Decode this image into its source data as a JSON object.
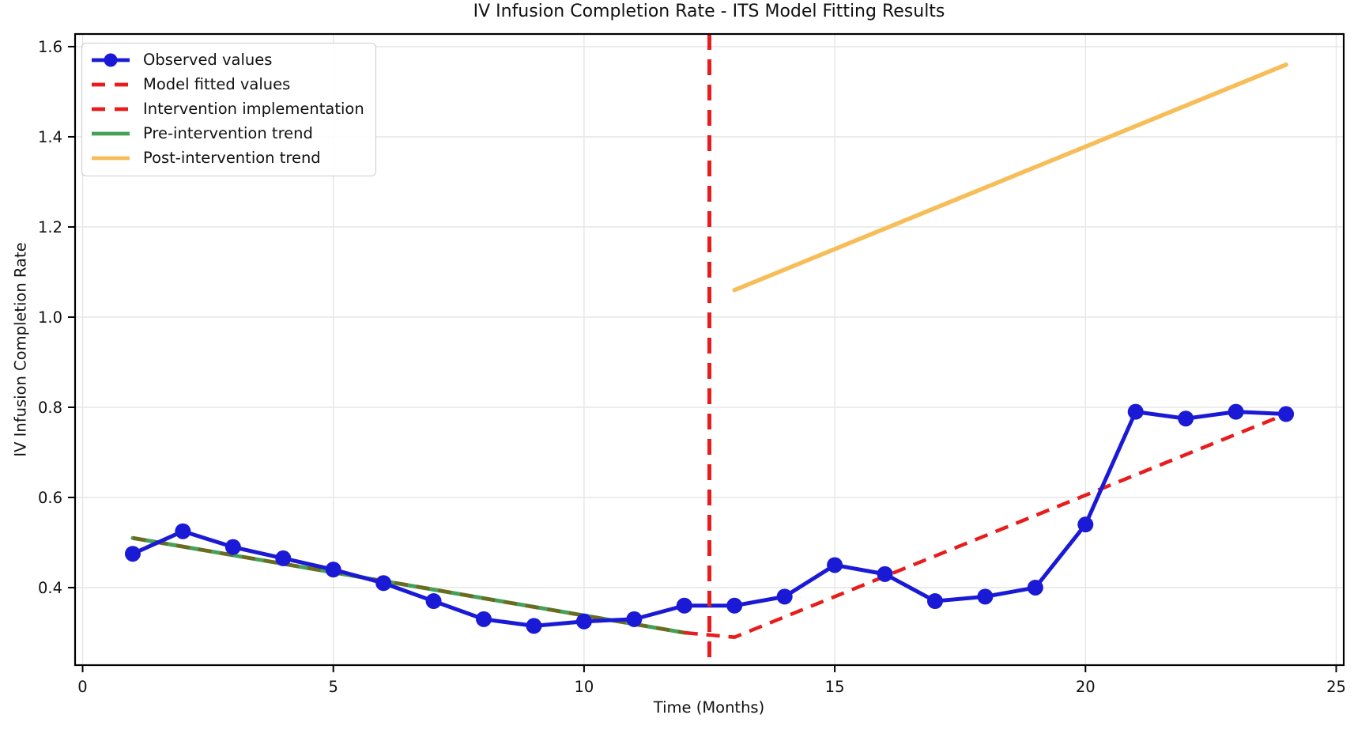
{
  "chart_data": {
    "type": "line",
    "title": "IV Infusion Completion Rate - ITS Model Fitting Results",
    "xlabel": "Time (Months)",
    "ylabel": "IV Infusion Completion Rate",
    "xlim": [
      -0.15,
      25.15
    ],
    "ylim": [
      0.228,
      1.628
    ],
    "xtick_values": [
      0,
      5,
      10,
      15,
      20,
      25
    ],
    "xtick_labels": [
      "0",
      "5",
      "10",
      "15",
      "20",
      "25"
    ],
    "ytick_values": [
      0.4,
      0.6,
      0.8,
      1.0,
      1.2,
      1.4,
      1.6
    ],
    "ytick_labels": [
      "0.4",
      "0.6",
      "0.8",
      "1.0",
      "1.2",
      "1.4",
      "1.6"
    ],
    "grid": true,
    "legend_position": "upper-left",
    "legend": [
      {
        "label": "Observed values",
        "type": "marker-line",
        "color": "#1a1ad6"
      },
      {
        "label": "Model fitted values",
        "type": "dashed",
        "color": "#e81c1c"
      },
      {
        "label": "Intervention implementation",
        "type": "dashed",
        "color": "#e81c1c"
      },
      {
        "label": "Pre-intervention trend",
        "type": "solid",
        "color": "#46a05a"
      },
      {
        "label": "Post-intervention trend",
        "type": "solid",
        "color": "#f6bd59"
      }
    ],
    "intervention_x": 12.5,
    "series": [
      {
        "name": "Pre-intervention trend",
        "x": [
          1,
          12
        ],
        "y": [
          0.51,
          0.3
        ],
        "color": "#46a05a",
        "dash": null,
        "width": 5,
        "marker": false
      },
      {
        "name": "Post-intervention trend",
        "x": [
          13,
          24
        ],
        "y": [
          1.06,
          1.56
        ],
        "color": "#f6bd59",
        "dash": null,
        "width": 5.5,
        "marker": false
      },
      {
        "name": "Model fitted values",
        "x": [
          1,
          2,
          3,
          4,
          5,
          6,
          7,
          8,
          9,
          10,
          11,
          12,
          13,
          14,
          15,
          16,
          17,
          18,
          19,
          20,
          21,
          22,
          23,
          24
        ],
        "y": [
          0.51,
          0.491,
          0.472,
          0.453,
          0.434,
          0.415,
          0.396,
          0.376,
          0.357,
          0.338,
          0.319,
          0.3,
          0.29,
          0.335,
          0.38,
          0.425,
          0.47,
          0.515,
          0.56,
          0.605,
          0.65,
          0.695,
          0.74,
          0.785
        ],
        "color": "#e81c1c",
        "dash": "17 11",
        "width": 4.5,
        "marker": false,
        "split_at_x": 12,
        "pre_overlap_color": "#6e6a1e"
      },
      {
        "name": "Observed values",
        "x": [
          1,
          2,
          3,
          4,
          5,
          6,
          7,
          8,
          9,
          10,
          11,
          12,
          13,
          14,
          15,
          16,
          17,
          18,
          19,
          20,
          21,
          22,
          23,
          24
        ],
        "y": [
          0.475,
          0.525,
          0.49,
          0.465,
          0.44,
          0.41,
          0.37,
          0.33,
          0.315,
          0.325,
          0.33,
          0.36,
          0.36,
          0.38,
          0.45,
          0.43,
          0.37,
          0.38,
          0.4,
          0.54,
          0.79,
          0.775,
          0.79,
          0.785
        ],
        "color": "#1a1ad6",
        "dash": null,
        "width": 5,
        "marker": true,
        "marker_r": 10
      }
    ],
    "intervention_line": {
      "color": "#e81c1c",
      "dash": "20 12",
      "width": 5
    },
    "colors": {
      "grid": "#e4e4e4",
      "axis": "#000000",
      "text": "#111111",
      "background": "#ffffff"
    }
  }
}
